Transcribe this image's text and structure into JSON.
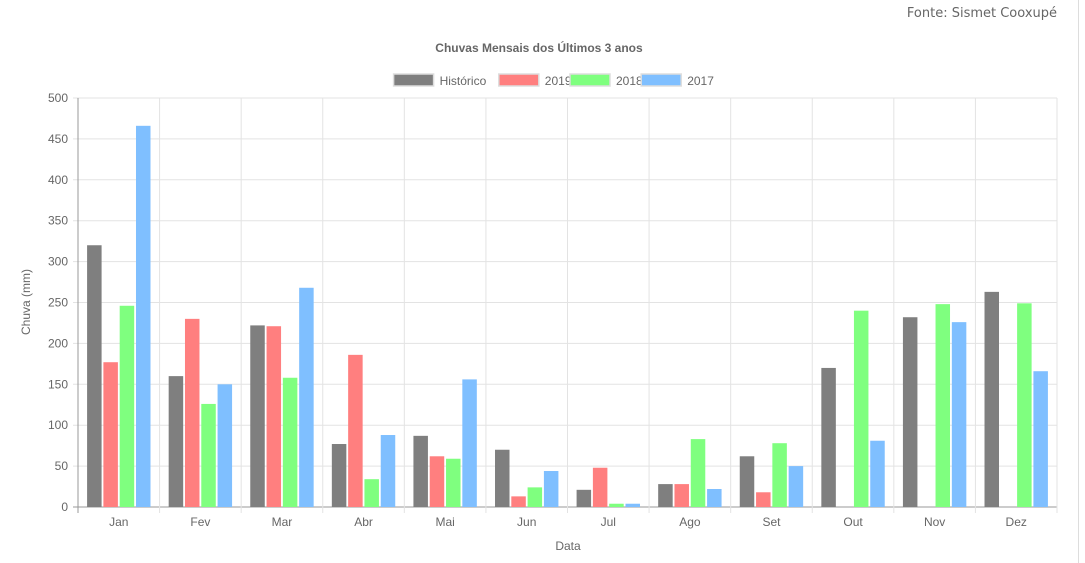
{
  "source": "Fonte: Sismet Cooxupé",
  "chart_data": {
    "type": "bar",
    "title": "Chuvas Mensais dos Últimos 3 anos",
    "xlabel": "Data",
    "ylabel": "Chuva (mm)",
    "ylim": [
      0,
      500
    ],
    "yticks": [
      0,
      50,
      100,
      150,
      200,
      250,
      300,
      350,
      400,
      450,
      500
    ],
    "grid": true,
    "legend_position": "top",
    "categories": [
      "Jan",
      "Fev",
      "Mar",
      "Abr",
      "Mai",
      "Jun",
      "Jul",
      "Ago",
      "Set",
      "Out",
      "Nov",
      "Dez"
    ],
    "series": [
      {
        "name": "Histórico",
        "color": "#7f7f7f",
        "values": [
          320,
          160,
          222,
          77,
          87,
          70,
          21,
          28,
          62,
          170,
          232,
          263
        ]
      },
      {
        "name": "2019",
        "color": "#ff7f7f",
        "values": [
          177,
          230,
          221,
          186,
          62,
          13,
          48,
          28,
          18,
          null,
          null,
          null
        ]
      },
      {
        "name": "2018",
        "color": "#7fff7f",
        "values": [
          246,
          126,
          158,
          34,
          59,
          24,
          4,
          83,
          78,
          240,
          248,
          249
        ]
      },
      {
        "name": "2017",
        "color": "#7fbfff",
        "values": [
          466,
          150,
          268,
          88,
          156,
          44,
          4,
          22,
          50,
          81,
          226,
          166
        ]
      }
    ]
  }
}
